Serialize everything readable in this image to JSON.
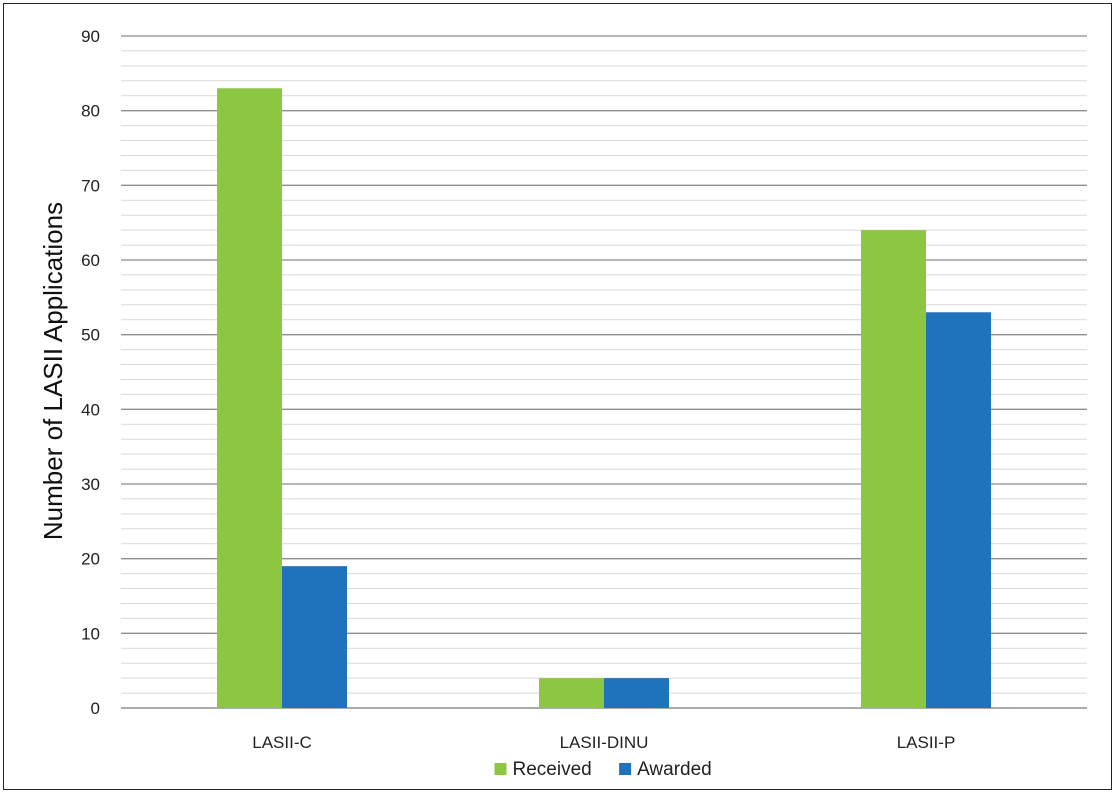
{
  "chart_data": {
    "type": "bar",
    "title": "",
    "xlabel": "",
    "ylabel": "Number of LASII Applications",
    "categories": [
      "LASII-C",
      "LASII-DINU",
      "LASII-P"
    ],
    "series": [
      {
        "name": "Received",
        "color": "#8dc641",
        "values": [
          83,
          4,
          64
        ]
      },
      {
        "name": "Awarded",
        "color": "#1f73bd",
        "values": [
          19,
          4,
          53
        ]
      }
    ],
    "ylim": [
      0,
      90
    ],
    "yticks": [
      0,
      10,
      20,
      30,
      40,
      50,
      60,
      70,
      80,
      90
    ],
    "minor_gridlines": true,
    "grid": true,
    "legend_position": "bottom-center"
  }
}
